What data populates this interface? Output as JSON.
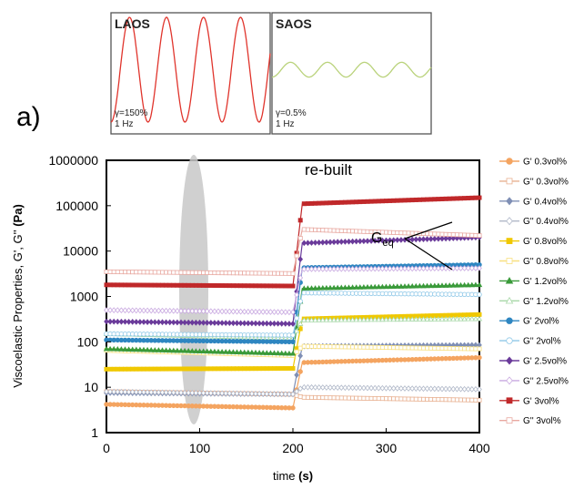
{
  "panel_label": "a)",
  "insets": [
    {
      "title": "LAOS",
      "strain": "γ=150%",
      "freq": "1 Hz",
      "color": "#e0342c",
      "cycles": 4.3,
      "amp": 0.92
    },
    {
      "title": "SAOS",
      "strain": "γ=0.5%",
      "freq": "1 Hz",
      "color": "#b9d27a",
      "cycles": 4.3,
      "amp": 0.13
    }
  ],
  "annotations": {
    "rebuilt": "re-built",
    "geq_base": "G",
    "geq_sub": "eq"
  },
  "chart_data": {
    "type": "line",
    "title": "",
    "xlabel": "time",
    "xlabel_unit": "(s)",
    "ylabel": "Viscoelastic Properties, G', G''",
    "ylabel_unit": "(Pa)",
    "xlim": [
      0,
      400
    ],
    "ylim": [
      1,
      1000000
    ],
    "yscale": "log",
    "xticks": [
      "0",
      "100",
      "200",
      "300",
      "400"
    ],
    "yticks": [
      "1",
      "10",
      "100",
      "1000",
      "10000",
      "100000",
      "1000000"
    ],
    "legend_position": "right",
    "transition_x": [
      200,
      210
    ],
    "series": [
      {
        "name": "G' 0.3vol%",
        "color": "#f4a460",
        "marker": "circle",
        "filled": true,
        "y": [
          4.2,
          3.5,
          35,
          45
        ]
      },
      {
        "name": "G'' 0.3vol%",
        "color": "#e8b090",
        "marker": "square",
        "filled": false,
        "y": [
          8,
          7,
          6,
          5.2
        ]
      },
      {
        "name": "G' 0.4vol%",
        "color": "#7f8fb5",
        "marker": "diamond",
        "filled": true,
        "y": [
          7.5,
          7,
          80,
          85
        ]
      },
      {
        "name": "G'' 0.4vol%",
        "color": "#b0b8c8",
        "marker": "diamond",
        "filled": false,
        "y": [
          8,
          7,
          10,
          9
        ]
      },
      {
        "name": "G' 0.8vol%",
        "color": "#f0c800",
        "marker": "square",
        "filled": true,
        "y": [
          25,
          26,
          320,
          400
        ]
      },
      {
        "name": "G'' 0.8vol%",
        "color": "#f8e080",
        "marker": "square",
        "filled": false,
        "y": [
          65,
          50,
          80,
          70
        ]
      },
      {
        "name": "G' 1.2vol%",
        "color": "#3a9a3a",
        "marker": "triangle",
        "filled": true,
        "y": [
          70,
          55,
          1500,
          1800
        ]
      },
      {
        "name": "G'' 1.2vol%",
        "color": "#a8d8a8",
        "marker": "triangle",
        "filled": false,
        "y": [
          150,
          120,
          300,
          320
        ]
      },
      {
        "name": "G' 2vol%",
        "color": "#2e86c1",
        "marker": "circle",
        "filled": true,
        "y": [
          110,
          100,
          4300,
          5000
        ]
      },
      {
        "name": "G'' 2vol%",
        "color": "#8fc8e8",
        "marker": "circle",
        "filled": false,
        "y": [
          150,
          140,
          1200,
          1100
        ]
      },
      {
        "name": "G' 2.5vol%",
        "color": "#6a3a9a",
        "marker": "diamond",
        "filled": true,
        "y": [
          280,
          250,
          15000,
          20000
        ]
      },
      {
        "name": "G'' 2.5vol%",
        "color": "#c8a8e0",
        "marker": "diamond",
        "filled": false,
        "y": [
          500,
          450,
          4000,
          4200
        ]
      },
      {
        "name": "G' 3vol%",
        "color": "#c0282a",
        "marker": "square",
        "filled": true,
        "y": [
          1800,
          1700,
          110000,
          150000
        ]
      },
      {
        "name": "G'' 3vol%",
        "color": "#e8a8a0",
        "marker": "square",
        "filled": false,
        "y": [
          3500,
          3200,
          30000,
          22000
        ]
      }
    ]
  }
}
